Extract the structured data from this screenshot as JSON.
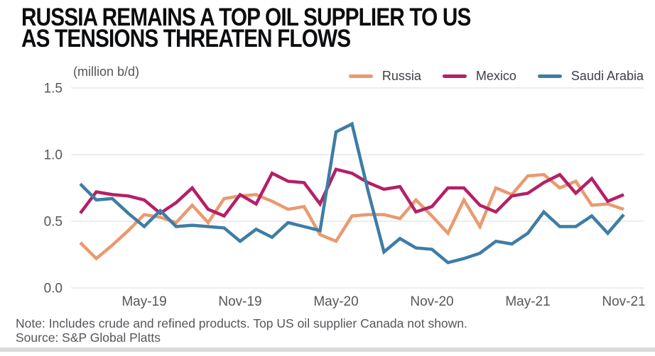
{
  "header": {
    "title_line1": "RUSSIA REMAINS A TOP OIL SUPPLIER TO US",
    "title_line2": "AS TENSIONS THREATEN FLOWS"
  },
  "chart": {
    "unit_label": "(million b/d)"
  },
  "chart_data": {
    "type": "line",
    "title": "Russia remains a top oil supplier to US as tensions threaten flows",
    "ylabel": "(million b/d)",
    "xlabel": "",
    "ylim": [
      0,
      1.5
    ],
    "grid": "horizontal",
    "legend_position": "top-right",
    "yticks": [
      {
        "value": 0.0,
        "label": "0.0"
      },
      {
        "value": 0.5,
        "label": "0.5"
      },
      {
        "value": 1.0,
        "label": "1.0"
      },
      {
        "value": 1.5,
        "label": "1.5"
      }
    ],
    "xticks": [
      "May-19",
      "Nov-19",
      "May-20",
      "Nov-20",
      "May-21",
      "Nov-21"
    ],
    "x": [
      "Jan-19",
      "Feb-19",
      "Mar-19",
      "Apr-19",
      "May-19",
      "Jun-19",
      "Jul-19",
      "Aug-19",
      "Sep-19",
      "Oct-19",
      "Nov-19",
      "Dec-19",
      "Jan-20",
      "Feb-20",
      "Mar-20",
      "Apr-20",
      "May-20",
      "Jun-20",
      "Jul-20",
      "Aug-20",
      "Sep-20",
      "Oct-20",
      "Nov-20",
      "Dec-20",
      "Jan-21",
      "Feb-21",
      "Mar-21",
      "Apr-21",
      "May-21",
      "Jun-21",
      "Jul-21",
      "Aug-21",
      "Sep-21",
      "Oct-21",
      "Nov-21"
    ],
    "series": [
      {
        "name": "Russia",
        "color": "#E99A70",
        "values": [
          0.34,
          0.22,
          0.32,
          0.43,
          0.55,
          0.53,
          0.49,
          0.62,
          0.49,
          0.67,
          0.69,
          0.7,
          0.65,
          0.59,
          0.61,
          0.4,
          0.35,
          0.54,
          0.55,
          0.55,
          0.52,
          0.66,
          0.54,
          0.41,
          0.66,
          0.46,
          0.75,
          0.7,
          0.84,
          0.85,
          0.75,
          0.8,
          0.62,
          0.63,
          0.59
        ]
      },
      {
        "name": "Mexico",
        "color": "#B42067",
        "values": [
          0.56,
          0.72,
          0.7,
          0.69,
          0.66,
          0.56,
          0.64,
          0.75,
          0.59,
          0.54,
          0.7,
          0.63,
          0.86,
          0.8,
          0.79,
          0.63,
          0.89,
          0.86,
          0.79,
          0.74,
          0.76,
          0.57,
          0.61,
          0.75,
          0.75,
          0.62,
          0.57,
          0.69,
          0.71,
          0.79,
          0.85,
          0.71,
          0.82,
          0.65,
          0.7
        ]
      },
      {
        "name": "Saudi Arabia",
        "color": "#3E7DA6",
        "values": [
          0.78,
          0.66,
          0.67,
          0.56,
          0.46,
          0.58,
          0.46,
          0.47,
          0.46,
          0.45,
          0.35,
          0.44,
          0.38,
          0.49,
          0.46,
          0.43,
          1.17,
          1.23,
          0.73,
          0.27,
          0.37,
          0.3,
          0.29,
          0.19,
          0.22,
          0.26,
          0.35,
          0.33,
          0.41,
          0.57,
          0.46,
          0.46,
          0.54,
          0.41,
          0.55
        ]
      }
    ]
  },
  "footer": {
    "note": "Note: Includes crude and refined products. Top US oil supplier Canada not shown.",
    "source": "Source: S&P Global Platts"
  }
}
